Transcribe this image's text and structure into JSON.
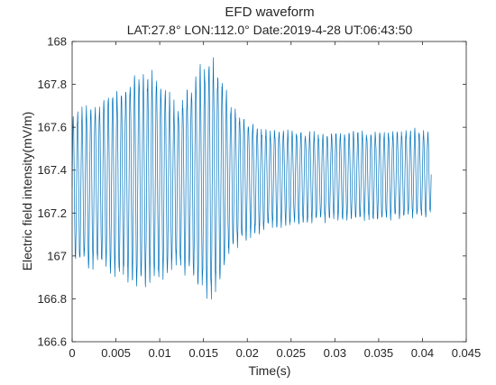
{
  "chart_data": {
    "type": "line",
    "title": "EFD waveform",
    "subtitle": "LAT:27.8°  LON:112.0°   Date:2019-4-28   UT:06:43:50",
    "xlabel": "Time(s)",
    "ylabel": "Electric field intensity(mV/m)",
    "xlim": [
      0,
      0.045
    ],
    "ylim": [
      166.6,
      168
    ],
    "xticks": [
      "0",
      "0.005",
      "0.01",
      "0.015",
      "0.02",
      "0.025",
      "0.03",
      "0.035",
      "0.04",
      "0.045"
    ],
    "yticks": [
      "166.6",
      "166.8",
      "167",
      "167.2",
      "167.4",
      "167.6",
      "167.8",
      "168"
    ],
    "grid": false,
    "legend": "none",
    "series_color": "#0072BD",
    "series": [
      {
        "x_start": 0,
        "x_end": 0.041,
        "oscillation_period_s": 0.0005,
        "baseline": [
          [
            0,
            167.32
          ],
          [
            0.003,
            167.33
          ],
          [
            0.006,
            167.35
          ],
          [
            0.01,
            167.36
          ],
          [
            0.016,
            167.38
          ],
          [
            0.02,
            167.38
          ],
          [
            0.041,
            167.38
          ]
        ],
        "envelope_max": [
          [
            0,
            167.68
          ],
          [
            0.002,
            167.72
          ],
          [
            0.004,
            167.76
          ],
          [
            0.006,
            167.82
          ],
          [
            0.008,
            167.9
          ],
          [
            0.01,
            167.85
          ],
          [
            0.012,
            167.7
          ],
          [
            0.014,
            167.86
          ],
          [
            0.0158,
            167.96
          ],
          [
            0.017,
            167.86
          ],
          [
            0.018,
            167.73
          ],
          [
            0.02,
            167.64
          ],
          [
            0.022,
            167.6
          ],
          [
            0.026,
            167.59
          ],
          [
            0.03,
            167.58
          ],
          [
            0.035,
            167.59
          ],
          [
            0.041,
            167.6
          ]
        ],
        "envelope_min": [
          [
            0,
            166.95
          ],
          [
            0.002,
            166.94
          ],
          [
            0.004,
            166.92
          ],
          [
            0.006,
            166.88
          ],
          [
            0.008,
            166.84
          ],
          [
            0.01,
            166.86
          ],
          [
            0.012,
            166.92
          ],
          [
            0.014,
            166.86
          ],
          [
            0.016,
            166.76
          ],
          [
            0.017,
            166.88
          ],
          [
            0.018,
            167.0
          ],
          [
            0.02,
            167.07
          ],
          [
            0.022,
            167.11
          ],
          [
            0.026,
            167.14
          ],
          [
            0.03,
            167.15
          ],
          [
            0.035,
            167.16
          ],
          [
            0.041,
            167.18
          ]
        ]
      }
    ]
  }
}
